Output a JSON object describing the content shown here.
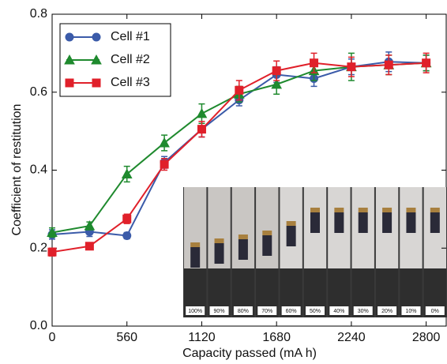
{
  "chart_data": {
    "type": "line",
    "x_label": "Capacity passed (mA h)",
    "y_label": "Coefficient of restitution",
    "x": [
      0,
      280,
      560,
      840,
      1120,
      1400,
      1680,
      1960,
      2240,
      2520,
      2800
    ],
    "xlim": [
      0,
      2950
    ],
    "xticks": [
      0,
      560,
      1120,
      1680,
      2240,
      2800
    ],
    "ylim": [
      0,
      0.8
    ],
    "yticks": [
      {
        "value": 0,
        "label": "0.0"
      },
      0.2,
      0.4,
      0.6,
      0.8
    ],
    "legend_position": "upper left",
    "series": [
      {
        "name": "Cell #1",
        "color": "#3b5ba9",
        "marker": "circle",
        "values": [
          0.235,
          0.242,
          0.232,
          0.42,
          0.505,
          0.58,
          0.645,
          0.635,
          0.665,
          0.678,
          0.675
        ],
        "errors": [
          0.012,
          0.012,
          0.008,
          0.015,
          0.02,
          0.015,
          0.02,
          0.02,
          0.02,
          0.025,
          0.02
        ]
      },
      {
        "name": "Cell #2",
        "color": "#1f8a2e",
        "marker": "triangle",
        "values": [
          0.24,
          0.257,
          0.39,
          0.47,
          0.545,
          0.595,
          0.62,
          0.655,
          0.665,
          0.67,
          0.675
        ],
        "errors": [
          0.012,
          0.01,
          0.02,
          0.02,
          0.025,
          0.02,
          0.025,
          0.025,
          0.035,
          0.025,
          0.02
        ]
      },
      {
        "name": "Cell #3",
        "color": "#e0202a",
        "marker": "square",
        "values": [
          0.19,
          0.205,
          0.275,
          0.415,
          0.505,
          0.605,
          0.655,
          0.675,
          0.665,
          0.67,
          0.675
        ],
        "errors": [
          0.01,
          0.008,
          0.012,
          0.015,
          0.02,
          0.025,
          0.025,
          0.025,
          0.025,
          0.025,
          0.025
        ]
      }
    ],
    "inset_labels": [
      "100%",
      "90%",
      "80%",
      "70%",
      "60%",
      "50%",
      "40%",
      "30%",
      "20%",
      "10%",
      "0%"
    ]
  }
}
